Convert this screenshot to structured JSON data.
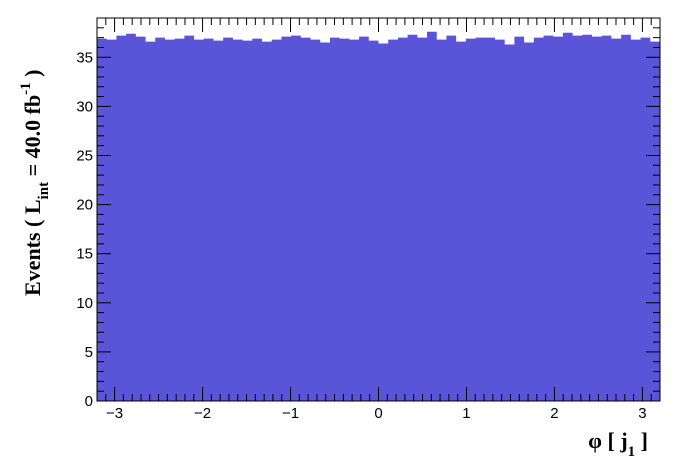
{
  "chart_data": {
    "type": "bar",
    "subtype": "histogram",
    "xlabel_main": "φ [ j",
    "xlabel_sub": "1",
    "xlabel_end": " ]",
    "ylabel_main": "Events  ( L",
    "ylabel_sub": "int",
    "ylabel_mid": " = 40.0 fb",
    "ylabel_sup": "-1",
    "ylabel_end": " )",
    "xlim": [
      -3.2,
      3.2
    ],
    "ylim": [
      0,
      39
    ],
    "x_ticks": [
      -3,
      -2,
      -1,
      0,
      1,
      2,
      3
    ],
    "x_tick_labels": [
      "−3",
      "−2",
      "−1",
      "0",
      "1",
      "2",
      "3"
    ],
    "y_ticks": [
      0,
      5,
      10,
      15,
      20,
      25,
      30,
      35
    ],
    "y_tick_labels": [
      "0",
      "5",
      "10",
      "15",
      "20",
      "25",
      "30",
      "35"
    ],
    "grid": false,
    "fill_color": "#5a54d9",
    "bin_edges_range": [
      -3.2,
      3.2
    ],
    "values": [
      36.9,
      36.8,
      37.2,
      37.4,
      37.1,
      36.6,
      37.0,
      36.8,
      36.9,
      37.2,
      36.8,
      36.9,
      36.7,
      37.0,
      36.8,
      36.7,
      36.9,
      36.6,
      36.8,
      37.1,
      37.2,
      37.0,
      36.8,
      36.5,
      37.0,
      36.9,
      36.8,
      37.1,
      36.7,
      36.4,
      36.8,
      37.0,
      37.3,
      37.0,
      37.6,
      36.8,
      37.2,
      36.6,
      36.9,
      37.0,
      37.0,
      36.8,
      36.3,
      37.1,
      36.5,
      37.0,
      37.2,
      37.1,
      37.5,
      37.2,
      37.3,
      37.1,
      37.2,
      36.9,
      37.3,
      36.8,
      37.0,
      36.6
    ]
  }
}
